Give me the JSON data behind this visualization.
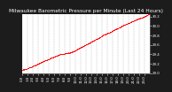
{
  "title": "Milwaukee Barometric Pressure per Minute (Last 24 Hours)",
  "y_min": 29.0,
  "y_max": 30.25,
  "y_ticks": [
    29.0,
    29.2,
    29.4,
    29.6,
    29.8,
    30.0,
    30.2
  ],
  "x_tick_labels": [
    "0:0",
    "1:0",
    "2:0",
    "3:0",
    "4:0",
    "5:0",
    "6:0",
    "7:0",
    "8:0",
    "9:0",
    "10:0",
    "11:0",
    "12:0",
    "13:0",
    "14:0",
    "15:0",
    "16:0",
    "17:0",
    "18:0",
    "19:0",
    "20:0",
    "21:0",
    "22:0",
    "23:0"
  ],
  "line_color": "#ff0000",
  "plot_bg": "#ffffff",
  "outer_bg": "#1c1c1c",
  "grid_color": "#999999",
  "title_color": "#ffffff",
  "tick_color": "#ffffff",
  "title_fontsize": 4.2,
  "tick_fontsize": 2.8,
  "num_points": 1440
}
